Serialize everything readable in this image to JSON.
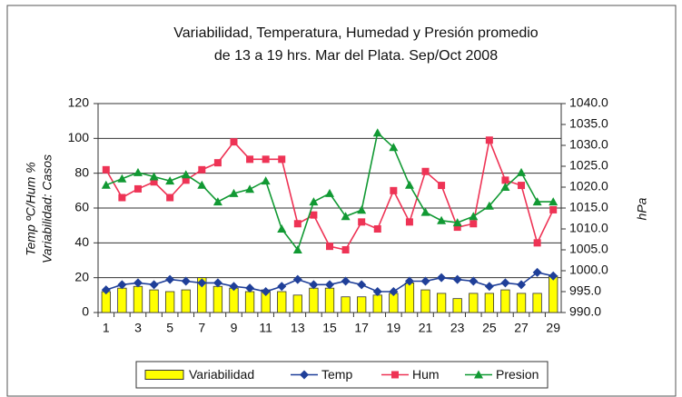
{
  "chart_data": {
    "type": "bar-line",
    "title": "Variabilidad, Temperatura, Humedad y Presión promedio",
    "subtitle": "de 13 a 19 hrs.  Mar del Plata.  Sep/Oct 2008",
    "ylabel": [
      "Temp ºC/Hum %",
      "Variabilidad: Casos"
    ],
    "y2label": "hPa",
    "categories": [
      "1",
      null,
      "3",
      null,
      "5",
      null,
      "7",
      null,
      "9",
      null,
      "11",
      null,
      "13",
      null,
      "15",
      null,
      "17",
      null,
      "19",
      null,
      "21",
      null,
      "23",
      null,
      "25",
      null,
      "27",
      null,
      "29"
    ],
    "ylim": [
      0,
      120
    ],
    "yticks": [
      0,
      20,
      40,
      60,
      80,
      100,
      120
    ],
    "y2lim": [
      990,
      1040
    ],
    "y2ticks": [
      {
        "value": 990,
        "label": "990.0"
      },
      {
        "value": 995,
        "label": "995.0"
      },
      {
        "value": 1000,
        "label": "1000.0"
      },
      {
        "value": 1005,
        "label": "1005.0"
      },
      {
        "value": 1010,
        "label": "1010.0"
      },
      {
        "value": 1015,
        "label": "1015.0"
      },
      {
        "value": 1020,
        "label": "1020.0"
      },
      {
        "value": 1025,
        "label": "1025.0"
      },
      {
        "value": 1030,
        "label": "1030.0"
      },
      {
        "value": 1035,
        "label": "1035.0"
      },
      {
        "value": 1040,
        "label": "1040.0"
      }
    ],
    "grid": true,
    "legend": "bottom",
    "series": [
      {
        "name": "Variabilidad",
        "type": "bar",
        "color": "#ffff00",
        "values": [
          12,
          14,
          15,
          13,
          12,
          13,
          20,
          15,
          14,
          12,
          13,
          12,
          10,
          14,
          14,
          9,
          9,
          10,
          11,
          17,
          13,
          11,
          8,
          11,
          11,
          13,
          11,
          11,
          21
        ]
      },
      {
        "name": "Temp",
        "type": "line",
        "marker": "diamond",
        "color": "#1f3f99",
        "values": [
          13,
          16,
          17,
          16,
          19,
          18,
          17,
          17,
          15,
          14,
          12,
          15,
          19,
          16,
          16,
          18,
          16,
          12,
          12,
          18,
          18,
          20,
          19,
          18,
          15,
          17,
          16,
          23,
          21
        ]
      },
      {
        "name": "Hum",
        "type": "line",
        "marker": "square",
        "color": "#ee3355",
        "values": [
          82,
          66,
          71,
          75,
          66,
          76,
          82,
          86,
          98,
          88,
          88,
          88,
          51,
          56,
          38,
          36,
          52,
          48,
          70,
          52,
          81,
          73,
          49,
          51,
          99,
          76,
          73,
          40,
          59
        ]
      },
      {
        "name": "Presion",
        "type": "line",
        "marker": "triangle",
        "color": "#119933",
        "axis": "y2",
        "values": [
          1020.5,
          1022,
          1023.5,
          1022.5,
          1021.5,
          1023,
          1020.5,
          1016.5,
          1018.5,
          1019.5,
          1021.5,
          1010,
          1005,
          1016.5,
          1018.5,
          1013,
          1014.5,
          1033,
          1029.5,
          1020.5,
          1014,
          1012,
          1011.5,
          1013,
          1015.5,
          1020,
          1023.5,
          1016.5,
          1016.5
        ]
      }
    ]
  }
}
